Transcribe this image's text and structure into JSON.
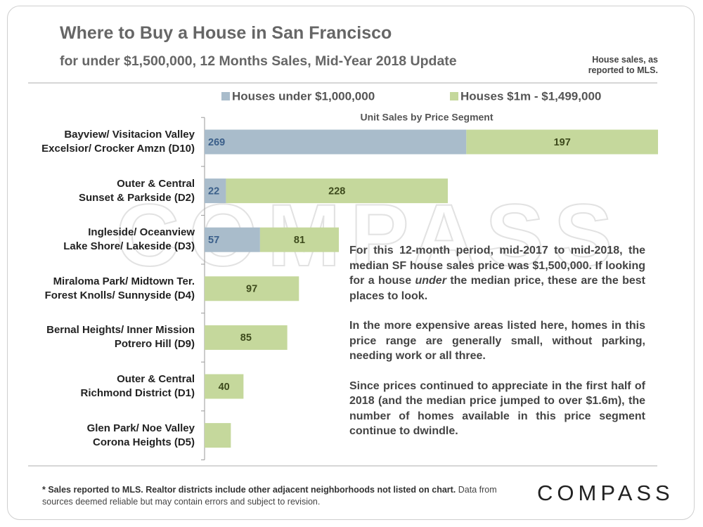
{
  "chart_data": {
    "type": "stacked_horizontal_bar",
    "title": "Where to Buy a House in San Francisco",
    "subtitle": "for under $1,500,000, 12 Months Sales, Mid-Year 2018 Update",
    "source_note": "House sales, as\nreported to MLS.",
    "x_axis_label": "Unit Sales by Price Segment",
    "categories": [
      "Bayview/ Visitacion Valley\nExcelsior/ Crocker Amzn (D10)",
      "Outer & Central\nSunset & Parkside (D2)",
      "Ingleside/ Oceanview\nLake Shore/ Lakeside (D3)",
      "Miraloma Park/ Midtown Ter.\nForest Knolls/ Sunnyside (D4)",
      "Bernal Heights/ Inner Mission\nPotrero Hill (D9)",
      "Outer & Central\nRichmond District (D1)",
      "Glen Park/ Noe Valley\nCorona Heights (D5)"
    ],
    "series": [
      {
        "name": "Houses under $1,000,000",
        "color": "#a9bccb",
        "label_color": "#3b5f8a",
        "values": [
          269,
          22,
          57,
          null,
          null,
          null,
          null
        ],
        "value_labels": [
          "269",
          "22",
          "57",
          null,
          null,
          null,
          null
        ]
      },
      {
        "name": "Houses $1m - $1,499,000",
        "color": "#c5d89c",
        "label_color": "#3d4a1c",
        "values": [
          197,
          228,
          81,
          97,
          85,
          40,
          27
        ],
        "value_labels": [
          "197",
          "228",
          "81",
          "97",
          "85",
          "40",
          null
        ]
      }
    ],
    "legend": "top",
    "annotation": [
      [
        "For this 12-month period, mid-2017 to mid-2018, the median SF house sales price was $1,500,000. If looking for a house ",
        "under",
        " the median price, these are the best places to look."
      ],
      [
        "In the more expensive areas listed here, homes in this price range are generally small, without parking, needing work or all three."
      ],
      [
        "Since prices continued to appreciate in the first half of 2018 (and the median price jumped to over $1.6m), the number of homes available in this price segment continue to dwindle."
      ]
    ],
    "footer": [
      "* Sales reported to MLS. Realtor districts include other adjacent neighborhoods not listed on chart.",
      " Data from sources deemed reliable but may contain errors and subject to revision."
    ],
    "logo": "COMPASS"
  }
}
